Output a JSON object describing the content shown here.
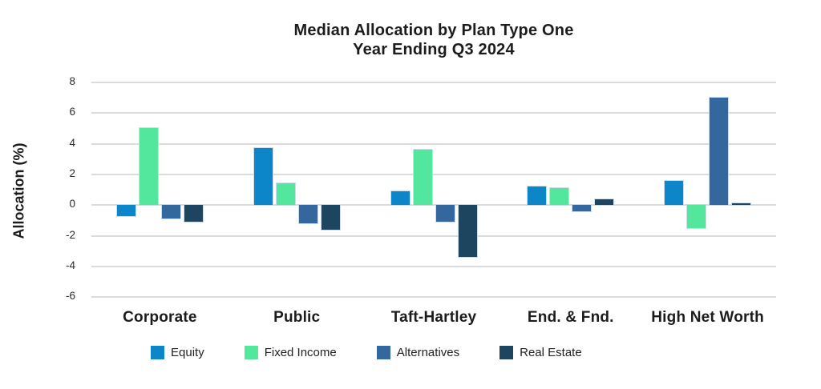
{
  "chart_data": {
    "type": "bar",
    "title": "Median Allocation by Plan Type One",
    "subtitle": "Year Ending Q3 2024",
    "ylabel": "Allocation (%)",
    "ylim": [
      -6,
      8
    ],
    "yticks": [
      8,
      6,
      4,
      2,
      0,
      -2,
      -4,
      -6
    ],
    "grid": true,
    "legend_position": "bottom",
    "categories": [
      "Corporate",
      "Public",
      "Taft-Hartley",
      "End. & Fnd.",
      "High Net Worth"
    ],
    "series": [
      {
        "name": "Equity",
        "color": "#0d86c9",
        "values": [
          -0.7,
          3.7,
          0.9,
          1.2,
          1.6
        ]
      },
      {
        "name": "Fixed Income",
        "color": "#53e79d",
        "values": [
          5.0,
          1.4,
          3.6,
          1.1,
          -1.5
        ]
      },
      {
        "name": "Alternatives",
        "color": "#34679d",
        "values": [
          -0.9,
          -1.2,
          -1.1,
          -0.4,
          7.0
        ]
      },
      {
        "name": "Real Estate",
        "color": "#1e4560",
        "values": [
          -1.1,
          -1.6,
          -3.4,
          0.4,
          0.1
        ]
      }
    ]
  },
  "colors": {
    "background": "#ffffff",
    "grid": "#dcdcdc",
    "text": "#1c1c1c"
  }
}
